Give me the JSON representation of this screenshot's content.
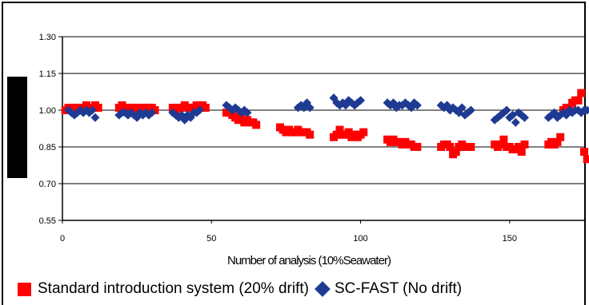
{
  "chart_data": {
    "type": "scatter",
    "title": "",
    "xlabel": "Number of analysis (10%Seawater)",
    "ylabel": "",
    "xlim": [
      0,
      175
    ],
    "ylim": [
      0.55,
      1.3
    ],
    "x_ticks": [
      "0",
      "50",
      "100",
      "150"
    ],
    "y_ticks": [
      "0.55",
      "0.70",
      "0.85",
      "1.00",
      "1.15",
      "1.30"
    ],
    "grid": "horizontal",
    "legend_position": "bottom",
    "colors": {
      "standard": "#ff0000",
      "scfast": "#1f3a93"
    },
    "series": [
      {
        "name": "Standard introduction system (20% drift)",
        "marker": "square",
        "color": "#ff0000",
        "points": [
          [
            1,
            1.0
          ],
          [
            2,
            1.01
          ],
          [
            3,
            1.0
          ],
          [
            4,
            1.01
          ],
          [
            5,
            1.01
          ],
          [
            6,
            1.0
          ],
          [
            7,
            1.01
          ],
          [
            8,
            1.02
          ],
          [
            9,
            1.01
          ],
          [
            10,
            1.01
          ],
          [
            11,
            1.02
          ],
          [
            12,
            1.01
          ],
          [
            19,
            1.01
          ],
          [
            20,
            1.02
          ],
          [
            21,
            1.01
          ],
          [
            22,
            1.0
          ],
          [
            23,
            1.01
          ],
          [
            24,
            1.01
          ],
          [
            25,
            1.0
          ],
          [
            26,
            1.01
          ],
          [
            27,
            1.0
          ],
          [
            28,
            1.01
          ],
          [
            29,
            1.01
          ],
          [
            30,
            1.01
          ],
          [
            31,
            1.0
          ],
          [
            37,
            1.01
          ],
          [
            38,
            1.0
          ],
          [
            39,
            1.01
          ],
          [
            40,
            1.01
          ],
          [
            41,
            1.02
          ],
          [
            42,
            1.01
          ],
          [
            43,
            1.01
          ],
          [
            44,
            1.01
          ],
          [
            45,
            1.02
          ],
          [
            46,
            1.01
          ],
          [
            47,
            1.02
          ],
          [
            48,
            1.01
          ],
          [
            55,
            0.99
          ],
          [
            56,
            0.99
          ],
          [
            57,
            0.98
          ],
          [
            58,
            0.97
          ],
          [
            59,
            0.96
          ],
          [
            60,
            0.97
          ],
          [
            61,
            0.95
          ],
          [
            62,
            0.96
          ],
          [
            63,
            0.95
          ],
          [
            64,
            0.95
          ],
          [
            65,
            0.94
          ],
          [
            73,
            0.93
          ],
          [
            74,
            0.92
          ],
          [
            75,
            0.91
          ],
          [
            76,
            0.92
          ],
          [
            77,
            0.91
          ],
          [
            78,
            0.91
          ],
          [
            79,
            0.92
          ],
          [
            80,
            0.91
          ],
          [
            81,
            0.91
          ],
          [
            82,
            0.91
          ],
          [
            83,
            0.9
          ],
          [
            91,
            0.89
          ],
          [
            92,
            0.9
          ],
          [
            93,
            0.92
          ],
          [
            94,
            0.9
          ],
          [
            95,
            0.9
          ],
          [
            96,
            0.91
          ],
          [
            97,
            0.89
          ],
          [
            98,
            0.9
          ],
          [
            99,
            0.89
          ],
          [
            100,
            0.9
          ],
          [
            101,
            0.91
          ],
          [
            109,
            0.88
          ],
          [
            110,
            0.87
          ],
          [
            111,
            0.88
          ],
          [
            112,
            0.87
          ],
          [
            113,
            0.87
          ],
          [
            114,
            0.86
          ],
          [
            115,
            0.87
          ],
          [
            116,
            0.86
          ],
          [
            117,
            0.86
          ],
          [
            118,
            0.85
          ],
          [
            119,
            0.85
          ],
          [
            127,
            0.85
          ],
          [
            128,
            0.86
          ],
          [
            129,
            0.86
          ],
          [
            130,
            0.85
          ],
          [
            131,
            0.82
          ],
          [
            132,
            0.83
          ],
          [
            133,
            0.85
          ],
          [
            134,
            0.86
          ],
          [
            135,
            0.85
          ],
          [
            136,
            0.85
          ],
          [
            137,
            0.85
          ],
          [
            145,
            0.86
          ],
          [
            146,
            0.85
          ],
          [
            147,
            0.86
          ],
          [
            148,
            0.88
          ],
          [
            149,
            0.85
          ],
          [
            150,
            0.85
          ],
          [
            151,
            0.84
          ],
          [
            152,
            0.84
          ],
          [
            153,
            0.85
          ],
          [
            154,
            0.83
          ],
          [
            155,
            0.86
          ],
          [
            163,
            0.86
          ],
          [
            164,
            0.87
          ],
          [
            165,
            0.86
          ],
          [
            166,
            0.87
          ],
          [
            167,
            0.89
          ],
          [
            168,
            1.0
          ],
          [
            169,
            1.01
          ],
          [
            170,
            1.01
          ],
          [
            171,
            1.03
          ],
          [
            172,
            1.04
          ],
          [
            173,
            1.04
          ],
          [
            174,
            1.07
          ],
          [
            175,
            0.83
          ],
          [
            176,
            0.8
          ],
          [
            177,
            0.77
          ]
        ]
      },
      {
        "name": "SC-FAST (No drift)",
        "marker": "diamond",
        "color": "#1f3a93",
        "points": [
          [
            2,
            1.0
          ],
          [
            3,
            0.99
          ],
          [
            4,
            0.98
          ],
          [
            5,
            0.99
          ],
          [
            6,
            1.0
          ],
          [
            7,
            0.99
          ],
          [
            8,
            1.0
          ],
          [
            9,
            0.99
          ],
          [
            10,
            1.0
          ],
          [
            11,
            0.97
          ],
          [
            19,
            0.98
          ],
          [
            20,
            0.99
          ],
          [
            21,
            0.99
          ],
          [
            22,
            0.98
          ],
          [
            23,
            0.99
          ],
          [
            24,
            0.98
          ],
          [
            25,
            0.97
          ],
          [
            26,
            0.99
          ],
          [
            27,
            0.98
          ],
          [
            28,
            0.99
          ],
          [
            29,
            0.98
          ],
          [
            30,
            0.99
          ],
          [
            37,
            0.99
          ],
          [
            38,
            0.98
          ],
          [
            39,
            0.97
          ],
          [
            40,
            0.98
          ],
          [
            41,
            0.96
          ],
          [
            42,
            0.98
          ],
          [
            43,
            0.97
          ],
          [
            44,
            0.99
          ],
          [
            45,
            0.99
          ],
          [
            46,
            1.0
          ],
          [
            55,
            1.02
          ],
          [
            56,
            1.01
          ],
          [
            57,
            1.0
          ],
          [
            58,
            1.01
          ],
          [
            59,
            1.0
          ],
          [
            60,
            0.99
          ],
          [
            61,
            1.0
          ],
          [
            62,
            0.99
          ],
          [
            79,
            1.01
          ],
          [
            80,
            1.02
          ],
          [
            81,
            1.01
          ],
          [
            82,
            1.03
          ],
          [
            83,
            1.01
          ],
          [
            91,
            1.05
          ],
          [
            92,
            1.03
          ],
          [
            93,
            1.02
          ],
          [
            94,
            1.03
          ],
          [
            95,
            1.02
          ],
          [
            96,
            1.04
          ],
          [
            97,
            1.03
          ],
          [
            98,
            1.02
          ],
          [
            99,
            1.03
          ],
          [
            100,
            1.04
          ],
          [
            109,
            1.03
          ],
          [
            110,
            1.02
          ],
          [
            111,
            1.03
          ],
          [
            112,
            1.01
          ],
          [
            113,
            1.02
          ],
          [
            114,
            1.02
          ],
          [
            115,
            1.03
          ],
          [
            116,
            1.02
          ],
          [
            117,
            1.01
          ],
          [
            118,
            1.03
          ],
          [
            119,
            1.02
          ],
          [
            127,
            1.02
          ],
          [
            128,
            1.01
          ],
          [
            129,
            1.02
          ],
          [
            130,
            1.0
          ],
          [
            131,
            1.01
          ],
          [
            132,
            1.0
          ],
          [
            133,
            0.99
          ],
          [
            134,
            1.01
          ],
          [
            135,
            0.98
          ],
          [
            136,
            0.99
          ],
          [
            137,
            1.0
          ],
          [
            145,
            0.96
          ],
          [
            146,
            0.97
          ],
          [
            147,
            0.98
          ],
          [
            148,
            0.99
          ],
          [
            149,
            1.0
          ],
          [
            150,
            0.97
          ],
          [
            151,
            0.98
          ],
          [
            152,
            0.95
          ],
          [
            153,
            0.99
          ],
          [
            154,
            0.98
          ],
          [
            155,
            0.97
          ],
          [
            163,
            0.97
          ],
          [
            164,
            0.98
          ],
          [
            165,
            0.99
          ],
          [
            166,
            0.97
          ],
          [
            167,
            0.98
          ],
          [
            168,
            0.99
          ],
          [
            169,
            0.98
          ],
          [
            170,
            1.0
          ],
          [
            171,
            0.99
          ],
          [
            172,
            1.0
          ],
          [
            173,
            1.0
          ],
          [
            174,
            0.99
          ],
          [
            175,
            1.0
          ],
          [
            176,
            1.0
          ]
        ]
      }
    ]
  },
  "legend": {
    "standard_label": "Standard introduction system (20% drift)",
    "scfast_label": "SC-FAST (No drift)"
  }
}
